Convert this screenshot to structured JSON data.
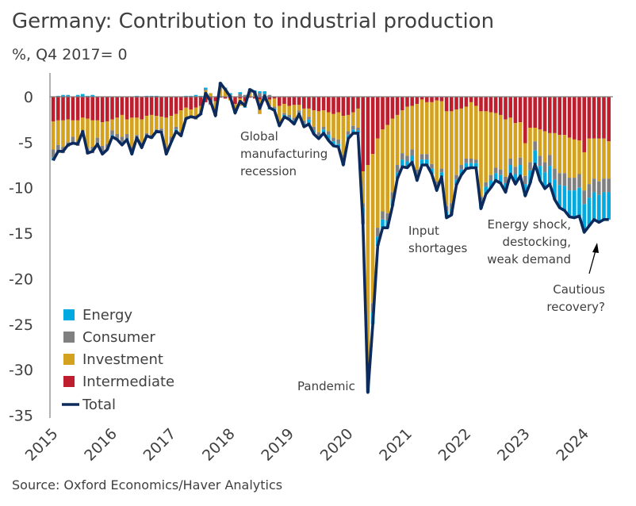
{
  "title": "Germany: Contribution to industrial production",
  "subtitle": "%, Q4 2017= 0",
  "source": "Source: Oxford Economics/Haver Analytics",
  "colors": {
    "Energy": "#00a9e0",
    "Consumer": "#808080",
    "Investment": "#d4a21f",
    "Intermediate": "#be1e2d",
    "Total": "#0d2a5c",
    "axis": "#7f7f7f",
    "text": "#404040"
  },
  "chart_data": {
    "type": "bar",
    "stacked": true,
    "title": "Germany: Contribution to industrial production",
    "ylabel": "%, Q4 2017= 0",
    "ylim": [
      -35,
      2
    ],
    "yticks": [
      0,
      -5,
      -10,
      -15,
      -20,
      -25,
      -30,
      -35
    ],
    "xtick_labels": [
      "2015",
      "2016",
      "2017",
      "2018",
      "2019",
      "2020",
      "2021",
      "2022",
      "2023",
      "2024"
    ],
    "grid": false,
    "legend_placement": "bottom-left",
    "x": [
      "2015-01",
      "2015-02",
      "2015-03",
      "2015-04",
      "2015-05",
      "2015-06",
      "2015-07",
      "2015-08",
      "2015-09",
      "2015-10",
      "2015-11",
      "2015-12",
      "2016-01",
      "2016-02",
      "2016-03",
      "2016-04",
      "2016-05",
      "2016-06",
      "2016-07",
      "2016-08",
      "2016-09",
      "2016-10",
      "2016-11",
      "2016-12",
      "2017-01",
      "2017-02",
      "2017-03",
      "2017-04",
      "2017-05",
      "2017-06",
      "2017-07",
      "2017-08",
      "2017-09",
      "2017-10",
      "2017-11",
      "2017-12",
      "2018-01",
      "2018-02",
      "2018-03",
      "2018-04",
      "2018-05",
      "2018-06",
      "2018-07",
      "2018-08",
      "2018-09",
      "2018-10",
      "2018-11",
      "2018-12",
      "2019-01",
      "2019-02",
      "2019-03",
      "2019-04",
      "2019-05",
      "2019-06",
      "2019-07",
      "2019-08",
      "2019-09",
      "2019-10",
      "2019-11",
      "2019-12",
      "2020-01",
      "2020-02",
      "2020-03",
      "2020-04",
      "2020-05",
      "2020-06",
      "2020-07",
      "2020-08",
      "2020-09",
      "2020-10",
      "2020-11",
      "2020-12",
      "2021-01",
      "2021-02",
      "2021-03",
      "2021-04",
      "2021-05",
      "2021-06",
      "2021-07",
      "2021-08",
      "2021-09",
      "2021-10",
      "2021-11",
      "2021-12",
      "2022-01",
      "2022-02",
      "2022-03",
      "2022-04",
      "2022-05",
      "2022-06",
      "2022-07",
      "2022-08",
      "2022-09",
      "2022-10",
      "2022-11",
      "2022-12",
      "2023-01",
      "2023-02",
      "2023-03",
      "2023-04",
      "2023-05",
      "2023-06",
      "2023-07",
      "2023-08",
      "2023-09",
      "2023-10",
      "2023-11",
      "2023-12",
      "2024-01",
      "2024-02",
      "2024-03",
      "2024-04",
      "2024-05",
      "2024-06"
    ],
    "series": [
      {
        "name": "Intermediate",
        "type": "bar",
        "values": [
          -2.7,
          -2.6,
          -2.6,
          -2.5,
          -2.6,
          -2.6,
          -2.3,
          -2.4,
          -2.6,
          -2.6,
          -2.8,
          -2.7,
          -2.5,
          -2.3,
          -2.0,
          -2.5,
          -2.3,
          -2.3,
          -2.5,
          -2.1,
          -2.0,
          -2.1,
          -2.2,
          -2.3,
          -2.1,
          -1.9,
          -1.5,
          -1.2,
          -1.4,
          -1.2,
          -1.0,
          -0.6,
          -0.8,
          -0.5,
          -0.1,
          -0.2,
          -0.2,
          -0.8,
          -0.2,
          -0.5,
          -0.1,
          -0.2,
          -0.3,
          -0.2,
          -0.3,
          -0.2,
          -1.0,
          -0.8,
          -1.0,
          -0.9,
          -0.9,
          -1.3,
          -1.3,
          -1.5,
          -1.6,
          -1.5,
          -1.7,
          -1.9,
          -1.7,
          -2.1,
          -2.0,
          -1.7,
          -1.3,
          -8.2,
          -7.5,
          -6.3,
          -4.6,
          -3.6,
          -3.1,
          -2.4,
          -2.0,
          -1.5,
          -1.1,
          -1.0,
          -0.8,
          -0.3,
          -0.6,
          -0.6,
          -0.4,
          -0.5,
          -1.6,
          -1.6,
          -1.4,
          -1.3,
          -1.1,
          -0.6,
          -1.0,
          -1.6,
          -1.6,
          -1.7,
          -1.8,
          -2.0,
          -2.5,
          -2.3,
          -2.9,
          -2.8,
          -5.1,
          -3.4,
          -3.4,
          -3.6,
          -3.8,
          -4.0,
          -4.0,
          -4.2,
          -4.2,
          -4.5,
          -4.7,
          -4.8,
          -6.1,
          -4.6,
          -4.6,
          -4.6,
          -4.6,
          -4.9
        ]
      },
      {
        "name": "Investment",
        "type": "bar",
        "values": [
          -3.1,
          -2.7,
          -2.9,
          -2.5,
          -1.8,
          -2.3,
          -1.4,
          -3.3,
          -2.9,
          -1.9,
          -2.6,
          -2.5,
          -1.2,
          -1.8,
          -2.4,
          -1.6,
          -3.2,
          -1.9,
          -2.5,
          -1.9,
          -2.2,
          -1.5,
          -1.3,
          -3.2,
          -2.3,
          -1.4,
          -2.4,
          -1.1,
          -0.7,
          -1.2,
          -0.9,
          0.7,
          0.4,
          -1.3,
          1.2,
          0.7,
          -0.2,
          -0.7,
          -0.8,
          -0.6,
          0.4,
          0.1,
          -1.6,
          -0.3,
          -1.0,
          -0.9,
          -1.8,
          -1.0,
          -1.0,
          -1.4,
          -0.6,
          -1.3,
          -0.9,
          -1.8,
          -2.3,
          -1.8,
          -2.1,
          -2.6,
          -3.0,
          -4.3,
          -1.8,
          -1.5,
          -2.1,
          -3.5,
          -22.7,
          -16.4,
          -9.8,
          -9.0,
          -9.7,
          -8.1,
          -5.5,
          -4.7,
          -5.4,
          -4.8,
          -7.2,
          -6.0,
          -5.7,
          -6.8,
          -8.9,
          -7.4,
          -10.4,
          -10.1,
          -7.2,
          -6.2,
          -5.7,
          -6.2,
          -5.9,
          -9.4,
          -7.8,
          -6.9,
          -6.0,
          -6.0,
          -6.3,
          -4.5,
          -4.8,
          -3.9,
          -3.6,
          -3.8,
          -1.5,
          -2.9,
          -3.4,
          -2.4,
          -3.9,
          -4.2,
          -4.2,
          -4.4,
          -4.2,
          -3.7,
          -4.2,
          -5.0,
          -4.4,
          -4.7,
          -4.4,
          -4.1
        ]
      },
      {
        "name": "Consumer",
        "type": "bar",
        "values": [
          -0.9,
          -0.8,
          -0.7,
          -0.5,
          -0.6,
          -0.5,
          -0.4,
          -0.6,
          -0.7,
          -0.6,
          -0.7,
          -0.6,
          -0.5,
          -0.5,
          -0.6,
          -0.5,
          -0.6,
          -0.4,
          -0.5,
          -0.4,
          -0.4,
          -0.3,
          -0.4,
          -0.6,
          -0.5,
          -0.3,
          -0.3,
          -0.2,
          -0.2,
          -0.1,
          -0.1,
          0.1,
          -0.1,
          -0.2,
          0.2,
          0.2,
          0.2,
          -0.2,
          0.3,
          0.2,
          0.3,
          0.3,
          0.4,
          0.3,
          0.2,
          -0.2,
          -0.3,
          -0.2,
          -0.3,
          -0.3,
          -0.3,
          -0.4,
          -0.3,
          -0.4,
          -0.4,
          -0.3,
          -0.4,
          -0.4,
          -0.5,
          -0.5,
          -0.4,
          -0.4,
          -0.3,
          -0.5,
          -0.8,
          -1.0,
          -1.0,
          -0.9,
          -0.8,
          -0.8,
          -0.8,
          -0.7,
          -0.6,
          -0.7,
          -0.6,
          -0.6,
          -0.6,
          -0.5,
          -0.5,
          -0.4,
          -0.6,
          -0.6,
          -0.5,
          -0.5,
          -0.5,
          -0.5,
          -0.4,
          -0.5,
          -0.5,
          -0.6,
          -0.6,
          -0.6,
          -0.7,
          -0.7,
          -0.8,
          -0.8,
          -0.9,
          -0.9,
          -1.0,
          -1.1,
          -1.1,
          -1.2,
          -1.2,
          -1.3,
          -1.4,
          -1.4,
          -1.4,
          -1.5,
          -1.5,
          -1.5,
          -1.5,
          -1.5,
          -1.5,
          -1.5
        ]
      },
      {
        "name": "Energy",
        "type": "bar",
        "values": [
          -0.3,
          0.1,
          0.2,
          0.2,
          -0.1,
          0.2,
          0.3,
          0.1,
          0.2,
          -0.1,
          -0.2,
          0.0,
          -0.2,
          -0.1,
          -0.3,
          -0.1,
          -0.2,
          0.1,
          -0.1,
          0.1,
          0.1,
          0.1,
          0.0,
          -0.2,
          -0.1,
          -0.2,
          -0.1,
          0.1,
          0.1,
          0.2,
          0.1,
          0.2,
          0.0,
          -0.1,
          0.2,
          0.1,
          0.2,
          -0.1,
          0.2,
          -0.1,
          0.2,
          0.3,
          0.2,
          0.3,
          -0.1,
          -0.2,
          -0.1,
          -0.2,
          -0.2,
          -0.4,
          -0.1,
          -0.3,
          -0.5,
          -0.4,
          -0.3,
          -0.4,
          -0.6,
          -0.5,
          -0.3,
          -0.6,
          -0.4,
          -0.4,
          -0.3,
          -1.8,
          -1.5,
          -1.3,
          -1.0,
          -0.9,
          -0.8,
          -0.7,
          -0.7,
          -0.8,
          -0.7,
          -0.7,
          -0.6,
          -0.6,
          -0.6,
          -0.6,
          -0.5,
          -0.5,
          -0.7,
          -0.7,
          -0.6,
          -0.6,
          -0.6,
          -0.5,
          -0.5,
          -0.8,
          -0.8,
          -0.8,
          -0.8,
          -0.9,
          -1.0,
          -1.0,
          -1.1,
          -1.2,
          -1.3,
          -1.4,
          -1.5,
          -1.6,
          -1.8,
          -2.0,
          -2.2,
          -2.5,
          -2.7,
          -2.9,
          -3.0,
          -3.1,
          -3.1,
          -3.1,
          -3.0,
          -3.0,
          -3.0,
          -3.0
        ]
      },
      {
        "name": "Total",
        "type": "line",
        "values": [
          -7.0,
          -6.0,
          -6.0,
          -5.3,
          -5.1,
          -5.2,
          -3.8,
          -6.2,
          -6.0,
          -5.2,
          -6.3,
          -5.8,
          -4.4,
          -4.7,
          -5.3,
          -4.7,
          -6.3,
          -4.5,
          -5.6,
          -4.3,
          -4.5,
          -3.8,
          -3.9,
          -6.3,
          -5.0,
          -3.8,
          -4.3,
          -2.4,
          -2.2,
          -2.3,
          -1.9,
          0.4,
          -0.5,
          -2.1,
          1.5,
          0.8,
          0.0,
          -1.8,
          -0.5,
          -1.0,
          0.8,
          0.5,
          -1.3,
          0.1,
          -1.2,
          -1.5,
          -3.2,
          -2.2,
          -2.5,
          -3.0,
          -1.9,
          -3.3,
          -3.0,
          -4.1,
          -4.6,
          -4.0,
          -4.8,
          -5.4,
          -5.5,
          -7.5,
          -4.6,
          -4.0,
          -4.0,
          -14.0,
          -32.5,
          -25.0,
          -16.4,
          -14.4,
          -14.4,
          -12.0,
          -9.0,
          -7.7,
          -7.8,
          -7.2,
          -9.2,
          -7.5,
          -7.5,
          -8.5,
          -10.3,
          -8.8,
          -13.3,
          -13.0,
          -9.7,
          -8.6,
          -7.9,
          -7.8,
          -7.8,
          -12.3,
          -10.7,
          -10.0,
          -9.2,
          -9.5,
          -10.5,
          -8.5,
          -9.6,
          -8.7,
          -10.9,
          -9.5,
          -7.4,
          -9.2,
          -10.1,
          -9.6,
          -11.3,
          -12.2,
          -12.5,
          -13.2,
          -13.3,
          -13.1,
          -14.9,
          -14.2,
          -13.5,
          -13.8,
          -13.5,
          -13.5
        ]
      }
    ],
    "legend": [
      "Energy",
      "Consumer",
      "Investment",
      "Intermediate",
      "Total"
    ],
    "annotations": [
      {
        "lines": [
          "Global",
          "manufacturing",
          "recession"
        ]
      },
      {
        "lines": [
          "Pandemic"
        ]
      },
      {
        "lines": [
          "Input",
          "shortages"
        ]
      },
      {
        "lines": [
          "Energy shock,",
          "destocking,",
          "weak demand"
        ]
      },
      {
        "lines": [
          "Cautious",
          "recovery?"
        ]
      }
    ]
  }
}
